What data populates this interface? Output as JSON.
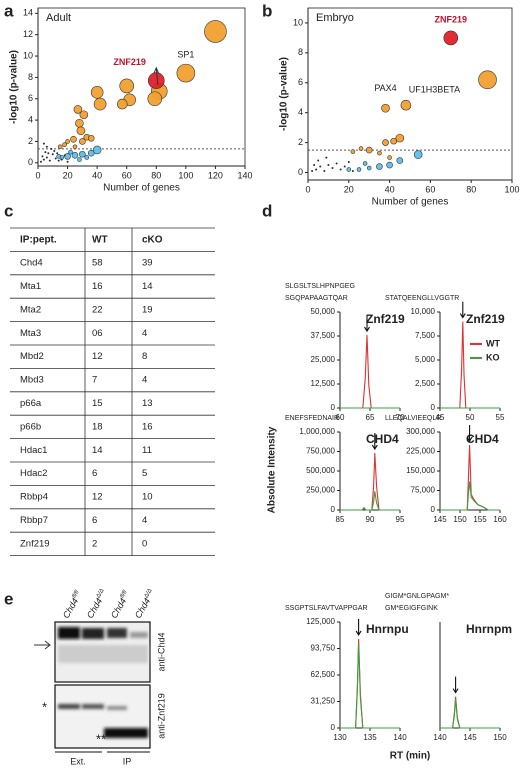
{
  "panel_labels": [
    "a",
    "b",
    "c",
    "d",
    "e"
  ],
  "chart_data": [
    {
      "type": "scatter",
      "title": "Adult",
      "x_label": "Number of genes",
      "y_label": "-log10 (p-value)",
      "xlim": [
        0,
        140
      ],
      "xticks": [
        0,
        20,
        40,
        60,
        80,
        100,
        120,
        140
      ],
      "ylim": [
        -0.3,
        14.5
      ],
      "yticks": [
        0,
        2,
        4,
        6,
        8,
        10,
        12,
        14
      ],
      "hline": 1.3,
      "annotations": [
        "ZNF219",
        "SP1"
      ],
      "series": [
        {
          "color": "#f0a030",
          "x": [
            120,
            100,
            82,
            79,
            60,
            62,
            57,
            40,
            42,
            31,
            27,
            28,
            29,
            33,
            36,
            24,
            20,
            18,
            15,
            25,
            30
          ],
          "values": [
            12.3,
            8.4,
            6.7,
            6.0,
            7.2,
            5.9,
            5.5,
            6.6,
            5.5,
            4.5,
            5.0,
            3.7,
            3.0,
            2.4,
            2.3,
            2.2,
            2.0,
            1.7,
            1.5,
            1.5,
            2.0
          ],
          "sizes": [
            11,
            9,
            8,
            7,
            7,
            6,
            5,
            6,
            6,
            4,
            4,
            4,
            4,
            3,
            3,
            3,
            2,
            2,
            2,
            2,
            3
          ]
        },
        {
          "color": "#e0202a",
          "x": [
            80
          ],
          "values": [
            7.7
          ],
          "sizes": [
            8
          ]
        },
        {
          "color": "#5bc0eb",
          "x": [
            40,
            36,
            30,
            25,
            20,
            16,
            14,
            22,
            33,
            28
          ],
          "values": [
            1.2,
            0.9,
            0.8,
            0.7,
            0.6,
            0.5,
            0.6,
            1.0,
            0.5,
            0.3
          ],
          "sizes": [
            4,
            3,
            3,
            3,
            3,
            2,
            2,
            2,
            2,
            2
          ]
        },
        {
          "color": "#222222",
          "x": [
            2,
            4,
            6,
            8,
            10,
            12,
            5,
            9,
            14,
            3,
            7,
            11,
            16,
            18,
            20,
            13,
            6,
            4
          ],
          "values": [
            0.1,
            0.3,
            0.5,
            0.2,
            0.8,
            0.4,
            1.0,
            1.3,
            0.2,
            0.6,
            0.9,
            1.1,
            0.3,
            0.7,
            0.1,
            0.9,
            1.5,
            1.8
          ],
          "sizes": [
            1,
            1,
            1,
            1,
            1,
            1,
            1,
            1,
            1,
            1,
            1,
            1,
            1,
            1,
            1,
            1,
            1,
            1
          ]
        }
      ]
    },
    {
      "type": "scatter",
      "title": "Embryo",
      "x_label": "Number of genes",
      "y_label": "-log10 (p-value)",
      "xlim": [
        0,
        100
      ],
      "xticks": [
        0,
        20,
        40,
        60,
        80,
        100
      ],
      "ylim": [
        -0.5,
        11
      ],
      "yticks": [
        0,
        2,
        4,
        6,
        8,
        10
      ],
      "hline": 1.5,
      "annotations": [
        "ZNF219",
        "PAX4",
        "UF1H3BETA"
      ],
      "series": [
        {
          "color": "#f0a030",
          "x": [
            88,
            48,
            38,
            45,
            42,
            38,
            30,
            35,
            26,
            40,
            22
          ],
          "values": [
            6.2,
            4.5,
            4.3,
            2.3,
            2.1,
            2.0,
            1.5,
            1.3,
            1.6,
            1.0,
            1.4
          ],
          "sizes": [
            9,
            5,
            4,
            4,
            3,
            3,
            3,
            2,
            2,
            2,
            2
          ]
        },
        {
          "color": "#e0202a",
          "x": [
            70
          ],
          "values": [
            9.0
          ],
          "sizes": [
            7
          ]
        },
        {
          "color": "#5bc0eb",
          "x": [
            54,
            45,
            40,
            35,
            30,
            25,
            28,
            20
          ],
          "values": [
            1.2,
            0.8,
            0.5,
            0.4,
            0.3,
            0.2,
            0.6,
            0.2
          ],
          "sizes": [
            4,
            3,
            3,
            3,
            2,
            2,
            2,
            2
          ]
        },
        {
          "color": "#222222",
          "x": [
            2,
            4,
            6,
            8,
            10,
            12,
            14,
            16,
            18,
            20,
            22,
            5,
            9,
            3
          ],
          "values": [
            0.1,
            0.2,
            0.4,
            0.1,
            0.5,
            0.3,
            0.6,
            0.2,
            0.4,
            0.7,
            0.1,
            0.8,
            1.0,
            0.5
          ],
          "sizes": [
            1,
            1,
            1,
            1,
            1,
            1,
            1,
            1,
            1,
            1,
            1,
            1,
            1,
            1
          ]
        }
      ]
    },
    {
      "type": "line",
      "title_lines": [
        "SLGSLTSLHPNPGEG",
        "SGQPAPAAGTQAR"
      ],
      "protein": "Znf219",
      "x": [
        60,
        63.8,
        64.2,
        64.5,
        64.8,
        65.2,
        70
      ],
      "series": [
        {
          "color": "#e03030",
          "values": [
            0,
            0,
            15000,
            38000,
            12000,
            0,
            0
          ]
        },
        {
          "color": "#3aa040",
          "values": [
            0,
            0,
            0,
            0,
            0,
            0,
            0
          ]
        }
      ],
      "xlim": [
        60,
        70
      ],
      "xticks": [
        60,
        65,
        70
      ],
      "ylim": [
        0,
        50000
      ],
      "yticks": [
        0,
        {
          "value": 12500,
          "label": "12,500"
        },
        {
          "value": 25000,
          "label": "25,000"
        },
        {
          "value": 37500,
          "label": "37,500"
        },
        {
          "value": 50000,
          "label": "50,000"
        }
      ]
    },
    {
      "type": "line",
      "title_lines": [
        "STATQEENGLLVGGTR"
      ],
      "protein": "Znf219",
      "legend": "upper right",
      "x": [
        45,
        48.3,
        48.6,
        48.8,
        49.0,
        49.3,
        55
      ],
      "series": [
        {
          "name": "WT",
          "color": "#e03030",
          "values": [
            0,
            0,
            4000,
            9000,
            3500,
            0,
            0
          ]
        },
        {
          "name": "KO",
          "color": "#3aa040",
          "values": [
            0,
            0,
            0,
            0,
            0,
            0,
            0
          ]
        }
      ],
      "xlim": [
        45,
        55
      ],
      "xticks": [
        45,
        50,
        55
      ],
      "ylim": [
        0,
        10000
      ],
      "yticks": [
        0,
        {
          "value": 2500,
          "label": "2,500"
        },
        {
          "value": 5000,
          "label": "5,000"
        },
        {
          "value": 7500,
          "label": "7,500"
        },
        {
          "value": 10000,
          "label": "10,000"
        }
      ]
    },
    {
      "type": "line",
      "title_lines": [
        "ENEFSFEDNAIR"
      ],
      "protein": "CHD4",
      "x": [
        85,
        88.7,
        89,
        89.3,
        90.3,
        90.6,
        90.8,
        91.1,
        91.5,
        95
      ],
      "series": [
        {
          "color": "#e03030",
          "values": [
            0,
            0,
            30000,
            0,
            0,
            300000,
            730000,
            300000,
            0,
            0
          ]
        },
        {
          "color": "#3aa040",
          "values": [
            0,
            0,
            20000,
            0,
            0,
            100000,
            240000,
            90000,
            0,
            0
          ]
        }
      ],
      "xlim": [
        85,
        95
      ],
      "xticks": [
        85,
        90,
        95
      ],
      "ylim": [
        0,
        1000000
      ],
      "yticks": [
        0,
        {
          "value": 250000,
          "label": "250,000"
        },
        {
          "value": 500000,
          "label": "500,000"
        },
        {
          "value": 750000,
          "label": "750,000"
        },
        {
          "value": 1000000,
          "label": "1,000,000"
        }
      ]
    },
    {
      "type": "line",
      "title_lines": [
        "LLEQALVIEEQLR"
      ],
      "protein": "CHD4",
      "x": [
        145,
        151.8,
        152.1,
        152.4,
        152.8,
        153.5,
        154.5,
        156,
        157,
        160
      ],
      "series": [
        {
          "color": "#e03030",
          "values": [
            0,
            0,
            120000,
            250000,
            60000,
            40000,
            20000,
            10000,
            0,
            0
          ]
        },
        {
          "color": "#3aa040",
          "values": [
            0,
            0,
            60000,
            110000,
            50000,
            35000,
            20000,
            10000,
            0,
            0
          ]
        }
      ],
      "xlim": [
        145,
        160
      ],
      "xticks": [
        145,
        150,
        155,
        160
      ],
      "ylim": [
        0,
        300000
      ],
      "yticks": [
        0,
        {
          "value": 75000,
          "label": "75,000"
        },
        {
          "value": 150000,
          "label": "150,000"
        },
        {
          "value": 225000,
          "label": "225,000"
        },
        {
          "value": 300000,
          "label": "300,000"
        }
      ]
    },
    {
      "type": "line",
      "title_lines": [
        "SSGPTSLFAVTVAPPGAR"
      ],
      "protein": "Hnrnpu",
      "x": [
        130,
        132.6,
        132.9,
        133.1,
        133.4,
        133.8,
        140
      ],
      "series": [
        {
          "color": "#e03030",
          "values": [
            0,
            0,
            50000,
            105000,
            40000,
            0,
            0
          ]
        },
        {
          "color": "#3aa040",
          "values": [
            0,
            0,
            45000,
            100000,
            35000,
            0,
            0
          ]
        }
      ],
      "xlim": [
        130,
        140
      ],
      "xticks": [
        130,
        135,
        140
      ],
      "ylim": [
        0,
        125000
      ],
      "yticks": [
        0,
        {
          "value": 31250,
          "label": "31,250"
        },
        {
          "value": 62500,
          "label": "62,500"
        },
        {
          "value": 93750,
          "label": "93,750"
        },
        {
          "value": 125000,
          "label": "125,000"
        }
      ]
    },
    {
      "type": "line",
      "title_lines": [
        "GIGM*GNLGPAGM*",
        "GM*EGIGFGINK"
      ],
      "protein": "Hnrnpm",
      "x": [
        140,
        142.1,
        142.4,
        142.6,
        142.9,
        143.3,
        150
      ],
      "series": [
        {
          "color": "#e03030",
          "values": [
            0,
            0,
            18000,
            37000,
            12000,
            0,
            0
          ]
        },
        {
          "color": "#3aa040",
          "values": [
            0,
            0,
            15000,
            34000,
            10000,
            0,
            0
          ]
        }
      ],
      "xlim": [
        140,
        150
      ],
      "xticks": [
        140,
        145,
        150
      ],
      "ylim": [
        0,
        125000
      ]
    }
  ],
  "figure_d": {
    "y_label": "Absolute Intensity",
    "x_label": "RT (min)"
  },
  "table": {
    "header": [
      "IP:pept.",
      "WT",
      "cKO"
    ],
    "rows": [
      [
        "Chd4",
        "58",
        "39"
      ],
      [
        "Mta1",
        "16",
        "14"
      ],
      [
        "Mta2",
        "22",
        "19"
      ],
      [
        "Mta3",
        "06",
        "4"
      ],
      [
        "Mbd2",
        "12",
        "8"
      ],
      [
        "Mbd3",
        "7",
        "4"
      ],
      [
        "p66a",
        "15",
        "13"
      ],
      [
        "p66b",
        "18",
        "16"
      ],
      [
        "Hdac1",
        "14",
        "11"
      ],
      [
        "Hdac2",
        "6",
        "5"
      ],
      [
        "Rbbp4",
        "12",
        "10"
      ],
      [
        "Rbbp7",
        "6",
        "4"
      ],
      [
        "Znf219",
        "2",
        "0"
      ]
    ]
  },
  "blot": {
    "lanes": [
      {
        "gene": "Chd4",
        "genotype": "fl/fl"
      },
      {
        "gene": "Chd4",
        "genotype": "Δ/Δ"
      },
      {
        "gene": "Chd4",
        "genotype": "fl/fl"
      },
      {
        "gene": "Chd4",
        "genotype": "Δ/Δ"
      }
    ],
    "antibodies": [
      "anti-Chd4",
      "anti-Znf219"
    ],
    "marks": [
      "*",
      "**"
    ],
    "groups": [
      "Ext.",
      "IP"
    ]
  }
}
